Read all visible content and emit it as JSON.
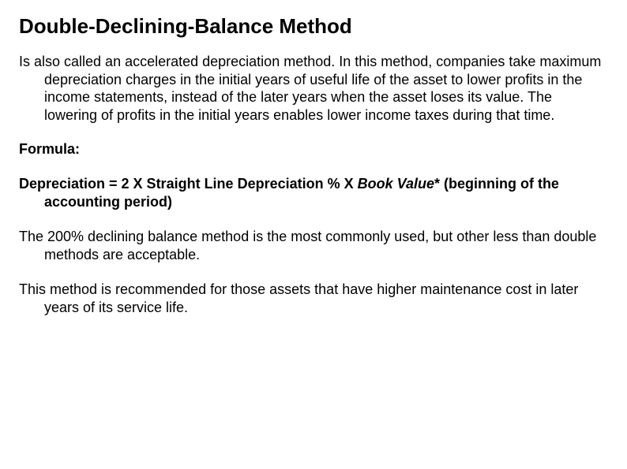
{
  "heading": "Double-Declining-Balance Method",
  "intro": "Is also called an accelerated depreciation method. In this method, companies take maximum depreciation charges in the initial years of useful life of the asset to lower profits in the income statements, instead of the later years when the asset loses its value. The lowering of profits in the initial years enables lower income taxes during that time.",
  "formula_label": "Formula:",
  "formula_prefix": "Depreciation = 2 X Straight Line Depreciation % X ",
  "formula_italic": "Book Value",
  "formula_suffix": "* (beginning of the accounting period)",
  "p2": "The 200% declining balance method is the most commonly used, but other less than double methods are acceptable.",
  "p3": "This method is recommended for those assets that have higher maintenance cost in later years of its service life."
}
